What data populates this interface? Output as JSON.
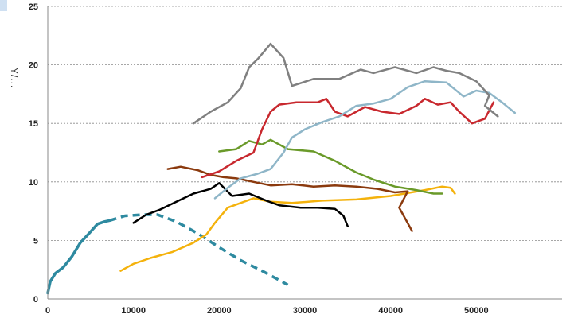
{
  "chart_data": {
    "type": "line",
    "title": "",
    "xlabel": "",
    "ylabel": "Y/...",
    "xlim": [
      0,
      60000
    ],
    "ylim": [
      0,
      25
    ],
    "x_ticks": [
      0,
      10000,
      20000,
      30000,
      40000,
      50000
    ],
    "x_tick_labels": [
      "0",
      "10000",
      "20000",
      "30000",
      "40000",
      "50000"
    ],
    "y_ticks": [
      0,
      5,
      10,
      15,
      20,
      25
    ],
    "y_tick_labels": [
      "0",
      "5",
      "10",
      "15",
      "20",
      "25"
    ],
    "grid": "horizontal",
    "series": [
      {
        "color": "#2e8aa0",
        "dash": false,
        "width": 3.5,
        "x": [
          0,
          300,
          900,
          1800,
          2800,
          3800,
          4700,
          5800,
          6600,
          7200
        ],
        "y": [
          0.5,
          1.5,
          2.2,
          2.7,
          3.6,
          4.8,
          5.5,
          6.4,
          6.6,
          6.7
        ]
      },
      {
        "color": "#2e8aa0",
        "dash": true,
        "width": 3.5,
        "x": [
          7200,
          9000,
          11000,
          12800,
          15000,
          17500,
          20000,
          22500,
          25000,
          28000
        ],
        "y": [
          6.7,
          7.1,
          7.2,
          7.2,
          6.6,
          5.6,
          4.4,
          3.3,
          2.4,
          1.2
        ]
      },
      {
        "color": "#f4b20c",
        "dash": false,
        "width": 2.5,
        "x": [
          8500,
          10000,
          12000,
          14500,
          17000,
          18500,
          19500,
          21000,
          24000,
          26000,
          28500,
          32000,
          36000,
          40000,
          44000,
          46000,
          47000,
          47500
        ],
        "y": [
          2.4,
          3.0,
          3.5,
          4.0,
          4.8,
          5.5,
          6.5,
          7.8,
          8.6,
          8.3,
          8.2,
          8.4,
          8.5,
          8.8,
          9.3,
          9.6,
          9.5,
          9.0
        ]
      },
      {
        "color": "#000000",
        "dash": false,
        "width": 2.5,
        "x": [
          10000,
          11500,
          13000,
          15000,
          17000,
          19000,
          20000,
          21500,
          23500,
          25500,
          27000,
          29500,
          31500,
          33500,
          34500,
          35000
        ],
        "y": [
          6.5,
          7.2,
          7.6,
          8.3,
          9.0,
          9.4,
          9.9,
          8.8,
          9.0,
          8.4,
          8.0,
          7.8,
          7.8,
          7.7,
          7.1,
          6.2
        ]
      },
      {
        "color": "#8b3a0e",
        "dash": false,
        "width": 2.5,
        "x": [
          14000,
          15500,
          17500,
          19000,
          20500,
          22000,
          24000,
          26000,
          28500,
          31000,
          33500,
          36000,
          38500,
          40500,
          42000,
          41000,
          42500
        ],
        "y": [
          11.1,
          11.3,
          11.0,
          10.6,
          10.4,
          10.3,
          10.0,
          9.7,
          9.8,
          9.6,
          9.7,
          9.6,
          9.4,
          9.1,
          9.2,
          7.8,
          5.8
        ]
      },
      {
        "color": "#6a9a2a",
        "dash": false,
        "width": 2.5,
        "x": [
          20000,
          22000,
          23500,
          25000,
          26000,
          28000,
          31000,
          33500,
          36000,
          38000,
          40500,
          43000,
          45000,
          46000
        ],
        "y": [
          12.6,
          12.8,
          13.5,
          13.2,
          13.6,
          12.8,
          12.6,
          11.8,
          10.8,
          10.2,
          9.6,
          9.3,
          9.0,
          9.0
        ]
      },
      {
        "color": "#c8282e",
        "dash": false,
        "width": 2.5,
        "x": [
          18000,
          20000,
          22000,
          24000,
          25000,
          26000,
          27000,
          29000,
          31500,
          32500,
          33500,
          35000,
          37000,
          39000,
          41000,
          43000,
          44000,
          45500,
          47000,
          48000,
          49500,
          51000,
          52000,
          51000
        ],
        "y": [
          10.4,
          10.9,
          11.8,
          12.5,
          14.5,
          16.0,
          16.6,
          16.8,
          16.8,
          17.1,
          16.0,
          15.6,
          16.4,
          16.0,
          15.8,
          16.5,
          17.1,
          16.6,
          16.8,
          16.0,
          15.0,
          15.4,
          16.8,
          15.4
        ]
      },
      {
        "color": "#8fb6c8",
        "dash": false,
        "width": 2.5,
        "x": [
          19500,
          21000,
          22500,
          24500,
          26000,
          27500,
          28500,
          30000,
          32000,
          34000,
          36000,
          38000,
          40000,
          42000,
          44000,
          46500,
          48500,
          50000,
          51500,
          53000,
          54500
        ],
        "y": [
          8.6,
          9.5,
          10.3,
          10.7,
          11.1,
          12.5,
          13.8,
          14.5,
          15.1,
          15.6,
          16.5,
          16.7,
          17.1,
          18.1,
          18.6,
          18.5,
          17.3,
          17.8,
          17.6,
          16.8,
          15.9
        ]
      },
      {
        "color": "#808080",
        "dash": false,
        "width": 2.5,
        "x": [
          17000,
          19000,
          21000,
          22500,
          23500,
          24500,
          26000,
          27500,
          28500,
          31000,
          34000,
          36500,
          38000,
          40500,
          43000,
          45000,
          46500,
          48000,
          50000,
          51500,
          51000,
          52500
        ],
        "y": [
          15.0,
          16.0,
          16.8,
          18.0,
          19.8,
          20.5,
          21.8,
          20.6,
          18.2,
          18.8,
          18.8,
          19.6,
          19.3,
          19.8,
          19.3,
          19.8,
          19.5,
          19.3,
          18.6,
          17.4,
          16.5,
          15.6
        ]
      }
    ]
  }
}
